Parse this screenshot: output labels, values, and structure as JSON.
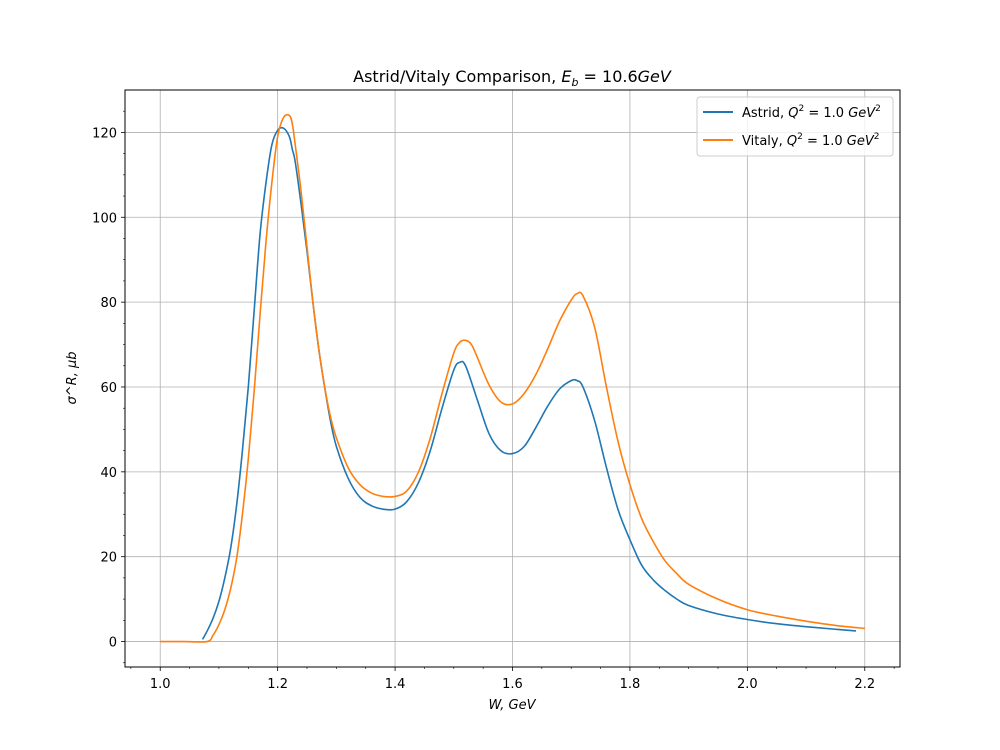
{
  "chart_data": {
    "type": "line",
    "title": "Astrid/Vitaly Comparison, E_b = 10.6GeV",
    "title_parts": {
      "prefix": "Astrid/Vitaly Comparison, ",
      "var": "E",
      "sub": "b",
      "eq": " = 10.6",
      "unit": "GeV"
    },
    "xlabel": "W, GeV",
    "ylabel": "σ^R, μb",
    "xlim": [
      0.94,
      2.26
    ],
    "ylim": [
      -6,
      130
    ],
    "x_ticks": [
      "1.0",
      "1.2",
      "1.4",
      "1.6",
      "1.8",
      "2.0",
      "2.2"
    ],
    "x_tick_values": [
      1.0,
      1.2,
      1.4,
      1.6,
      1.8,
      2.0,
      2.2
    ],
    "y_ticks": [
      "0",
      "20",
      "40",
      "60",
      "80",
      "100",
      "120"
    ],
    "y_tick_values": [
      0,
      20,
      40,
      60,
      80,
      100,
      120
    ],
    "grid": true,
    "legend_position": "top-right",
    "series": [
      {
        "name": "Astrid, Q^2 = 1.0 GeV^2",
        "legend_text": "Astrid, ",
        "color": "#1f77b4",
        "x": [
          1.072,
          1.08,
          1.09,
          1.1,
          1.11,
          1.12,
          1.13,
          1.14,
          1.15,
          1.16,
          1.17,
          1.18,
          1.19,
          1.2,
          1.21,
          1.22,
          1.225,
          1.23,
          1.24,
          1.25,
          1.26,
          1.27,
          1.28,
          1.29,
          1.3,
          1.32,
          1.34,
          1.36,
          1.38,
          1.4,
          1.42,
          1.44,
          1.46,
          1.48,
          1.5,
          1.51,
          1.52,
          1.54,
          1.56,
          1.58,
          1.6,
          1.62,
          1.64,
          1.66,
          1.68,
          1.7,
          1.71,
          1.72,
          1.74,
          1.76,
          1.78,
          1.8,
          1.82,
          1.84,
          1.86,
          1.88,
          1.9,
          1.95,
          2.0,
          2.05,
          2.1,
          2.15,
          2.185
        ],
        "y": [
          0.5,
          2.5,
          5.5,
          9.5,
          15,
          22,
          32,
          45,
          60,
          78,
          96,
          108,
          117,
          120.5,
          121,
          119,
          116,
          113,
          103,
          92,
          80,
          69,
          60,
          52,
          46,
          38.5,
          34,
          32,
          31.2,
          31.2,
          33,
          37.5,
          45,
          55,
          64,
          65.8,
          65,
          57,
          49,
          45,
          44.3,
          46,
          50.5,
          55.5,
          59.5,
          61.5,
          61.5,
          60,
          52,
          41,
          31,
          24,
          18,
          14.5,
          12,
          10,
          8.5,
          6.5,
          5.2,
          4.2,
          3.5,
          2.9,
          2.5
        ]
      },
      {
        "name": "Vitaly, Q^2 = 1.0 GeV^2",
        "legend_text": "Vitaly, ",
        "color": "#ff7f0e",
        "x": [
          1.0,
          1.04,
          1.08,
          1.09,
          1.1,
          1.11,
          1.12,
          1.13,
          1.14,
          1.15,
          1.16,
          1.17,
          1.18,
          1.19,
          1.2,
          1.21,
          1.22,
          1.225,
          1.23,
          1.24,
          1.25,
          1.26,
          1.27,
          1.28,
          1.29,
          1.3,
          1.32,
          1.34,
          1.36,
          1.38,
          1.4,
          1.42,
          1.44,
          1.46,
          1.48,
          1.5,
          1.51,
          1.52,
          1.53,
          1.54,
          1.56,
          1.58,
          1.6,
          1.62,
          1.64,
          1.66,
          1.68,
          1.7,
          1.71,
          1.72,
          1.74,
          1.76,
          1.78,
          1.8,
          1.82,
          1.84,
          1.86,
          1.88,
          1.9,
          1.95,
          2.0,
          2.05,
          2.1,
          2.15,
          2.2
        ],
        "y": [
          0,
          0,
          0,
          1.5,
          4,
          7.5,
          12.5,
          19.5,
          30,
          43,
          59,
          77,
          94,
          108,
          119,
          123.5,
          124,
          122,
          117,
          106,
          93,
          80,
          69,
          60,
          53,
          48,
          41,
          37,
          35,
          34.2,
          34.2,
          35.5,
          40,
          48,
          58.5,
          68,
          70.5,
          71,
          70,
          67,
          60.5,
          56.5,
          56,
          58.5,
          63,
          69,
          75.5,
          80.5,
          82,
          81.5,
          74,
          60,
          47,
          37,
          29,
          23.5,
          19,
          16,
          13.5,
          10,
          7.5,
          6,
          4.8,
          3.8,
          3.1
        ]
      }
    ]
  }
}
